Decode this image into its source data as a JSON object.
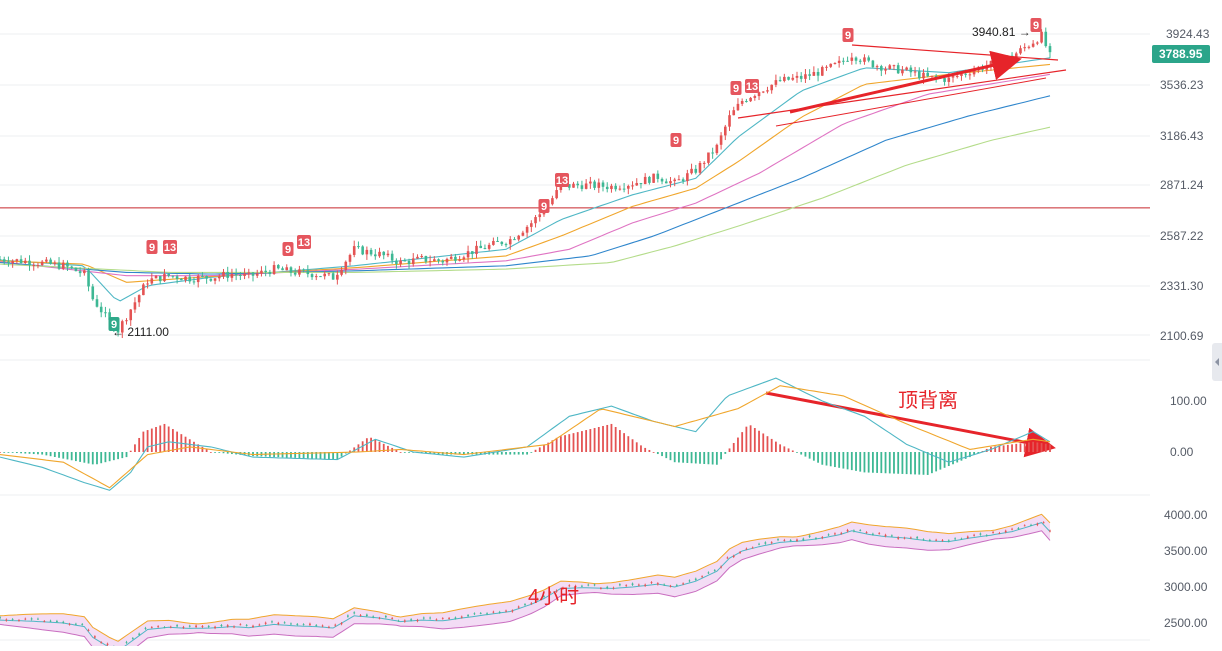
{
  "colors": {
    "up": "#e45353",
    "down": "#3db894",
    "marker9": "#e5565e",
    "marker9_low": "#2fa98a",
    "annotation": "#e6242a",
    "support_line": "#c8282c",
    "price_tag_bg": "#2ba58a",
    "axis_text": "#555b66",
    "grid": "#eeeff2",
    "ma_colors": [
      "#4fb7c5",
      "#f0a62c",
      "#df74c3",
      "#2f86cc",
      "#b4dc8a"
    ],
    "dif": "#4fb7c5",
    "dea": "#f0a62c",
    "boll_upper": "#f0a62c",
    "boll_lower": "#c96ec0",
    "boll_mid": "#4fb7c5",
    "boll_fill": "#f3dcf5"
  },
  "main_panel": {
    "y_ticks": [
      "3924.43",
      "3536.23",
      "3186.43",
      "2871.24",
      "2587.22",
      "2331.30",
      "2100.69"
    ],
    "current_price": "3788.95",
    "high_label": "3940.81 →",
    "low_label": "← 2111.00",
    "support_level": "2871.24",
    "td_markers": [
      {
        "text": "9",
        "low": false,
        "group": "a"
      },
      {
        "text": "13",
        "low": false,
        "group": "a"
      },
      {
        "text": "9",
        "low": false,
        "group": "b"
      },
      {
        "text": "13",
        "low": false,
        "group": "b"
      },
      {
        "text": "9",
        "low": true,
        "group": "c"
      },
      {
        "text": "9",
        "low": false,
        "group": "d"
      },
      {
        "text": "13",
        "low": false,
        "group": "d"
      },
      {
        "text": "9",
        "low": false,
        "group": "e"
      },
      {
        "text": "9",
        "low": false,
        "group": "f"
      },
      {
        "text": "13",
        "low": false,
        "group": "f"
      },
      {
        "text": "9",
        "low": false,
        "group": "g"
      },
      {
        "text": "9",
        "low": false,
        "group": "h"
      }
    ]
  },
  "macd_panel": {
    "y_ticks": [
      "100.00",
      "0.00"
    ],
    "annotation": "顶背离"
  },
  "boll_panel": {
    "y_ticks": [
      "4000.00",
      "3500.00",
      "3000.00",
      "2500.00"
    ],
    "annotation": "4小时"
  },
  "chart_data": {
    "type": "candlestick",
    "timeframe_label": "4小时",
    "price_axis_ticks": [
      3924.43,
      3536.23,
      3186.43,
      2871.24,
      2587.22,
      2331.3,
      2100.69
    ],
    "horizontal_line": 2871.24,
    "current_price": 3788.95,
    "marked_high": 3940.81,
    "marked_low": 2111.0,
    "close_path": [
      [
        0,
        2560
      ],
      [
        15,
        2545
      ],
      [
        30,
        2520
      ],
      [
        40,
        2470
      ],
      [
        44,
        2320
      ],
      [
        52,
        2180
      ],
      [
        56,
        2130
      ],
      [
        60,
        2215
      ],
      [
        70,
        2430
      ],
      [
        80,
        2460
      ],
      [
        90,
        2445
      ],
      [
        100,
        2450
      ],
      [
        110,
        2470
      ],
      [
        118,
        2455
      ],
      [
        130,
        2500
      ],
      [
        140,
        2480
      ],
      [
        150,
        2470
      ],
      [
        158,
        2450
      ],
      [
        168,
        2620
      ],
      [
        180,
        2590
      ],
      [
        190,
        2540
      ],
      [
        200,
        2560
      ],
      [
        210,
        2550
      ],
      [
        222,
        2600
      ],
      [
        232,
        2640
      ],
      [
        242,
        2680
      ],
      [
        252,
        2780
      ],
      [
        258,
        2860
      ],
      [
        266,
        3000
      ],
      [
        276,
        3010
      ],
      [
        290,
        3000
      ],
      [
        300,
        3020
      ],
      [
        312,
        3060
      ],
      [
        320,
        3020
      ],
      [
        330,
        3100
      ],
      [
        340,
        3240
      ],
      [
        346,
        3420
      ],
      [
        352,
        3520
      ],
      [
        360,
        3580
      ],
      [
        370,
        3640
      ],
      [
        380,
        3660
      ],
      [
        390,
        3700
      ],
      [
        398,
        3745
      ],
      [
        404,
        3800
      ],
      [
        412,
        3750
      ],
      [
        420,
        3720
      ],
      [
        430,
        3700
      ],
      [
        440,
        3660
      ],
      [
        450,
        3650
      ],
      [
        460,
        3700
      ],
      [
        470,
        3740
      ],
      [
        480,
        3790
      ],
      [
        488,
        3860
      ],
      [
        494,
        3915
      ],
      [
        498,
        3790
      ]
    ],
    "moving_averages": {
      "ma_a": [
        [
          0,
          2555
        ],
        [
          40,
          2520
        ],
        [
          56,
          2300
        ],
        [
          70,
          2400
        ],
        [
          100,
          2450
        ],
        [
          168,
          2520
        ],
        [
          240,
          2620
        ],
        [
          266,
          2800
        ],
        [
          300,
          2950
        ],
        [
          330,
          3050
        ],
        [
          350,
          3300
        ],
        [
          380,
          3580
        ],
        [
          410,
          3720
        ],
        [
          450,
          3690
        ],
        [
          498,
          3780
        ]
      ],
      "ma_b": [
        [
          0,
          2550
        ],
        [
          40,
          2530
        ],
        [
          60,
          2420
        ],
        [
          100,
          2455
        ],
        [
          170,
          2510
        ],
        [
          240,
          2580
        ],
        [
          266,
          2700
        ],
        [
          300,
          2880
        ],
        [
          330,
          2990
        ],
        [
          350,
          3150
        ],
        [
          380,
          3420
        ],
        [
          410,
          3620
        ],
        [
          450,
          3680
        ],
        [
          498,
          3740
        ]
      ],
      "ma_c": [
        [
          0,
          2545
        ],
        [
          60,
          2460
        ],
        [
          100,
          2460
        ],
        [
          170,
          2500
        ],
        [
          240,
          2550
        ],
        [
          270,
          2620
        ],
        [
          300,
          2780
        ],
        [
          330,
          2900
        ],
        [
          360,
          3080
        ],
        [
          400,
          3380
        ],
        [
          440,
          3560
        ],
        [
          498,
          3680
        ]
      ],
      "ma_d": [
        [
          0,
          2540
        ],
        [
          60,
          2480
        ],
        [
          100,
          2470
        ],
        [
          170,
          2490
        ],
        [
          240,
          2520
        ],
        [
          280,
          2580
        ],
        [
          310,
          2700
        ],
        [
          340,
          2850
        ],
        [
          380,
          3050
        ],
        [
          420,
          3280
        ],
        [
          460,
          3430
        ],
        [
          498,
          3550
        ]
      ],
      "ma_e": [
        [
          0,
          2530
        ],
        [
          80,
          2480
        ],
        [
          170,
          2480
        ],
        [
          240,
          2500
        ],
        [
          290,
          2540
        ],
        [
          320,
          2640
        ],
        [
          350,
          2760
        ],
        [
          390,
          2930
        ],
        [
          430,
          3130
        ],
        [
          470,
          3280
        ],
        [
          498,
          3360
        ]
      ]
    },
    "macd_dif_path": [
      [
        0,
        -10
      ],
      [
        20,
        -30
      ],
      [
        40,
        -60
      ],
      [
        52,
        -75
      ],
      [
        62,
        -40
      ],
      [
        70,
        10
      ],
      [
        80,
        20
      ],
      [
        100,
        10
      ],
      [
        120,
        -10
      ],
      [
        160,
        -15
      ],
      [
        178,
        25
      ],
      [
        196,
        0
      ],
      [
        220,
        -10
      ],
      [
        250,
        10
      ],
      [
        270,
        70
      ],
      [
        290,
        90
      ],
      [
        310,
        60
      ],
      [
        330,
        40
      ],
      [
        345,
        110
      ],
      [
        368,
        145
      ],
      [
        390,
        100
      ],
      [
        410,
        70
      ],
      [
        430,
        15
      ],
      [
        450,
        -20
      ],
      [
        470,
        5
      ],
      [
        490,
        40
      ],
      [
        498,
        20
      ]
    ],
    "macd_dea_path": [
      [
        0,
        -5
      ],
      [
        30,
        -20
      ],
      [
        52,
        -70
      ],
      [
        70,
        -5
      ],
      [
        90,
        10
      ],
      [
        120,
        -5
      ],
      [
        170,
        0
      ],
      [
        190,
        5
      ],
      [
        220,
        -5
      ],
      [
        260,
        15
      ],
      [
        285,
        85
      ],
      [
        320,
        50
      ],
      [
        350,
        85
      ],
      [
        370,
        130
      ],
      [
        400,
        110
      ],
      [
        430,
        55
      ],
      [
        460,
        5
      ],
      [
        490,
        25
      ],
      [
        498,
        20
      ]
    ],
    "macd_histogram_path": [
      [
        0,
        0
      ],
      [
        20,
        -5
      ],
      [
        45,
        -25
      ],
      [
        60,
        -10
      ],
      [
        68,
        40
      ],
      [
        78,
        55
      ],
      [
        90,
        25
      ],
      [
        100,
        0
      ],
      [
        120,
        -8
      ],
      [
        160,
        -15
      ],
      [
        175,
        30
      ],
      [
        190,
        0
      ],
      [
        210,
        -5
      ],
      [
        250,
        -5
      ],
      [
        265,
        30
      ],
      [
        290,
        55
      ],
      [
        305,
        10
      ],
      [
        320,
        -20
      ],
      [
        340,
        -25
      ],
      [
        355,
        55
      ],
      [
        370,
        15
      ],
      [
        390,
        -25
      ],
      [
        410,
        -40
      ],
      [
        440,
        -45
      ],
      [
        460,
        -10
      ],
      [
        470,
        10
      ],
      [
        490,
        20
      ],
      [
        498,
        15
      ]
    ],
    "macd_ticks": [
      100.0,
      0.0
    ],
    "boll_ticks": [
      4000.0,
      3500.0,
      3000.0,
      2500.0
    ]
  }
}
